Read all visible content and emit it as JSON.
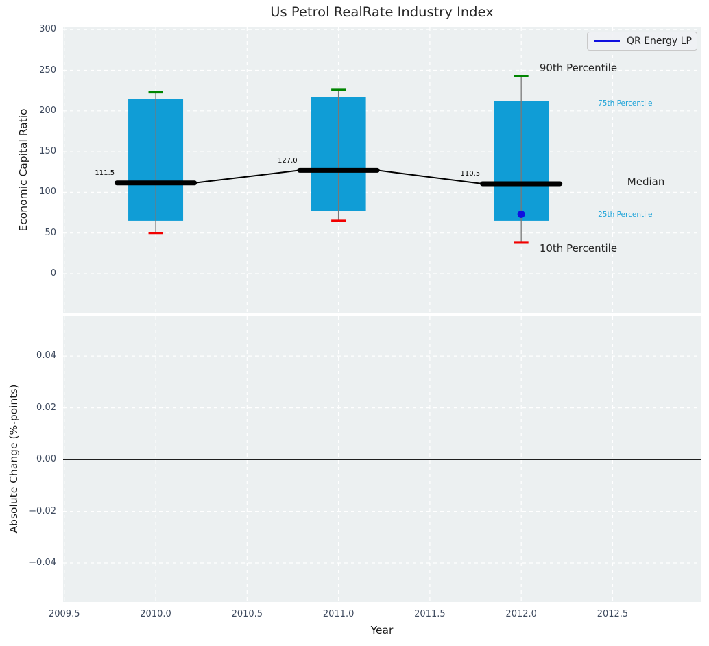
{
  "title": "Us Petrol RealRate Industry Index",
  "legend": {
    "label": "QR Energy LP"
  },
  "colors": {
    "box_fill": "#109dd6",
    "whisker_line": "#787878",
    "cap_high": "#008500",
    "cap_low": "#f10000",
    "median_line": "#000000",
    "company_point": "#0f0fe0",
    "axes_bg": "#ecf0f1",
    "grid": "#ffffff",
    "tick_label": "#3e4a5e",
    "text": "#262626",
    "percentile_label": "#1ba2d8",
    "zero_line": "#000000"
  },
  "axes": {
    "x": {
      "label": "Year",
      "tick_labels": [
        "2009.5",
        "2010.0",
        "2010.5",
        "2011.0",
        "2011.5",
        "2012.0",
        "2012.5"
      ],
      "tick_values": [
        2009.5,
        2010.0,
        2010.5,
        2011.0,
        2011.5,
        2012.0,
        2012.5
      ],
      "xlim": [
        2009.4934,
        2012.9822
      ]
    },
    "top": {
      "ylabel": "Economic Capital Ratio",
      "tick_labels": [
        "300",
        "250",
        "200",
        "150",
        "100",
        "50",
        "0"
      ],
      "tick_values": [
        300,
        250,
        200,
        150,
        100,
        50,
        0
      ],
      "ylim": [
        -48.9,
        302.7
      ]
    },
    "bottom": {
      "ylabel": "Absolute Change (%-points)",
      "tick_labels": [
        "0.04",
        "0.02",
        "0.00",
        "−0.02",
        "−0.04"
      ],
      "tick_values": [
        0.04,
        0.02,
        0.0,
        -0.02,
        -0.04
      ],
      "ylim": [
        -0.0551,
        0.0554
      ]
    }
  },
  "chart_data": {
    "type": "box-timeseries",
    "title": "Us Petrol RealRate Industry Index",
    "xlabel": "Year",
    "ylabel_top": "Economic Capital Ratio",
    "ylabel_bottom": "Absolute Change (%-points)",
    "grid": "on, white dashed on light gray",
    "legend_position": "upper right",
    "years": [
      2010,
      2011,
      2012
    ],
    "boxes": [
      {
        "year": 2010,
        "p10": 50,
        "p25": 65,
        "median": 111.5,
        "p75": 215,
        "p90": 223
      },
      {
        "year": 2011,
        "p10": 65,
        "p25": 77,
        "median": 127.0,
        "p75": 217,
        "p90": 226
      },
      {
        "year": 2012,
        "p10": 38,
        "p25": 65,
        "median": 110.5,
        "p75": 212,
        "p90": 243
      }
    ],
    "median_value_labels": [
      "111.5",
      "127.0",
      "110.5"
    ],
    "company_series": {
      "name": "QR Energy LP",
      "points": [
        {
          "year": 2012,
          "value": 73
        }
      ]
    },
    "annotations": [
      {
        "text": "90th Percentile",
        "x": 2012.1,
        "y": 252,
        "style": "large"
      },
      {
        "text": "75th Percentile",
        "x": 2012.42,
        "y": 207.5,
        "style": "small"
      },
      {
        "text": "Median",
        "x": 2012.58,
        "y": 112,
        "style": "large"
      },
      {
        "text": "25th Percentile",
        "x": 2012.42,
        "y": 71,
        "style": "small"
      },
      {
        "text": "10th Percentile",
        "x": 2012.1,
        "y": 30,
        "style": "large"
      }
    ],
    "median_label_offset": {
      "x": -0.225,
      "y": 11.5
    },
    "bottom_panel": {
      "series": "none visible",
      "zero_line_y": 0.0
    }
  }
}
